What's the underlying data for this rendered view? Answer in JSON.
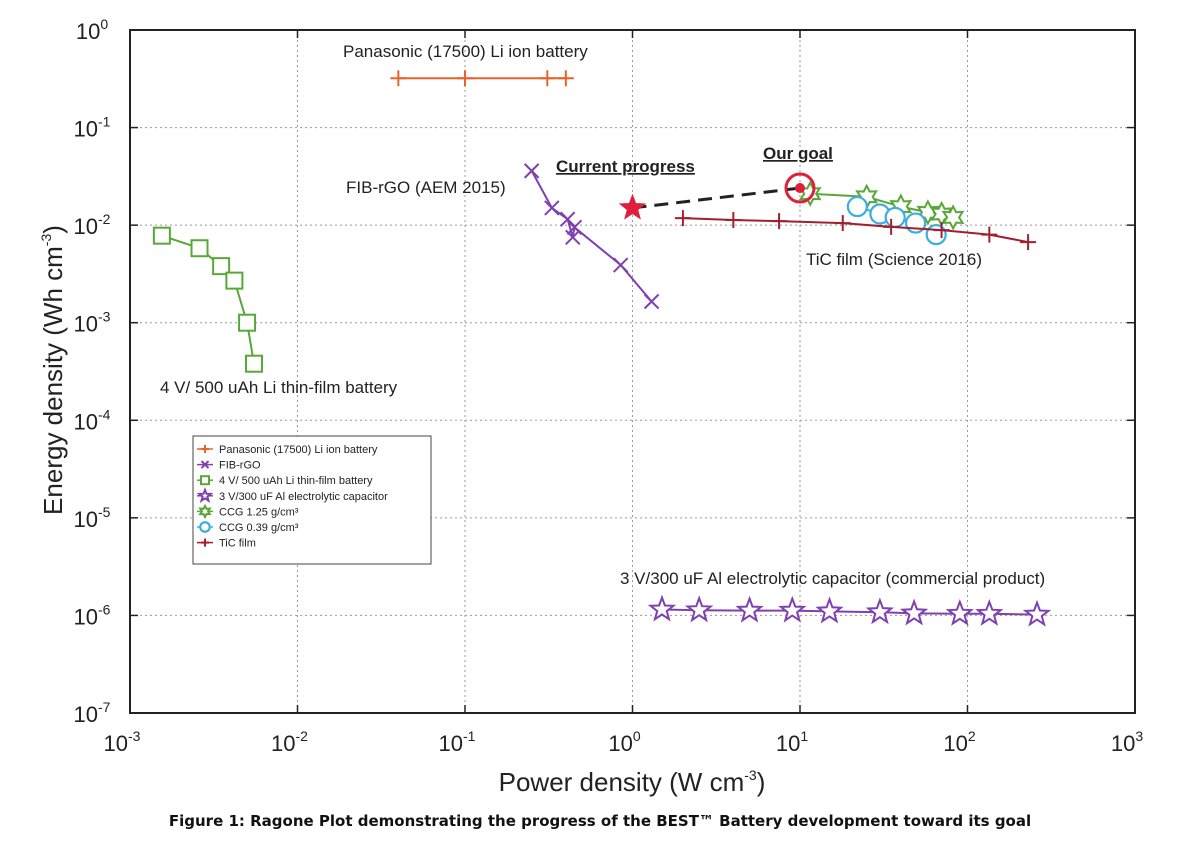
{
  "chart_data": {
    "type": "scatter",
    "scale": "log-log",
    "xlabel": "Power density (W cm",
    "xlabel_sup": "-3",
    "xlabel_tail": ")",
    "ylabel": "Energy density (Wh cm",
    "ylabel_sup": "-3",
    "ylabel_tail": ")",
    "xlim": [
      0.001,
      1000
    ],
    "ylim": [
      1e-07,
      1
    ],
    "x_tick_exponents": [
      -3,
      -2,
      -1,
      0,
      1,
      2,
      3
    ],
    "y_tick_exponents": [
      -7,
      -6,
      -5,
      -4,
      -3,
      -2,
      -1,
      0
    ],
    "grid": true,
    "series": [
      {
        "name": "Panasonic (17500) Li ion battery",
        "marker": "plus",
        "color": "#e8622c",
        "x": [
          0.04,
          0.1,
          0.31,
          0.4
        ],
        "y": [
          0.32,
          0.32,
          0.32,
          0.32
        ]
      },
      {
        "name": "FIB-rGO",
        "marker": "cross",
        "color": "#8040b0",
        "x": [
          0.25,
          0.33,
          0.41,
          0.44,
          0.45,
          0.85,
          1.3
        ],
        "y": [
          0.036,
          0.015,
          0.0115,
          0.0075,
          0.0095,
          0.0039,
          0.00165
        ]
      },
      {
        "name": "4 V/ 500 uAh Li thin-film battery",
        "marker": "square",
        "color": "#58a838",
        "x": [
          0.00155,
          0.0026,
          0.0035,
          0.0042,
          0.005,
          0.0055
        ],
        "y": [
          0.0078,
          0.0058,
          0.0038,
          0.0027,
          0.001,
          0.00038
        ]
      },
      {
        "name": "3 V/300 uF Al electrolytic capacitor",
        "marker": "star",
        "color": "#8040b0",
        "x": [
          1.5,
          2.5,
          5,
          9,
          15,
          30,
          48,
          90,
          135,
          260
        ],
        "y": [
          1.15e-06,
          1.13e-06,
          1.12e-06,
          1.12e-06,
          1.1e-06,
          1.08e-06,
          1.05e-06,
          1.04e-06,
          1.04e-06,
          1.02e-06
        ]
      },
      {
        "name": "CCG 1.25 g/cm³",
        "marker": "hexstar",
        "color": "#58a838",
        "x": [
          11.5,
          25,
          40,
          58,
          70,
          82
        ],
        "y": [
          0.021,
          0.0195,
          0.0155,
          0.0135,
          0.013,
          0.012
        ]
      },
      {
        "name": "CCG  0.39 g/cm³",
        "marker": "circle",
        "color": "#3aaee0",
        "x": [
          22,
          30,
          37,
          49,
          65
        ],
        "y": [
          0.0155,
          0.013,
          0.012,
          0.0105,
          0.008
        ]
      },
      {
        "name": "TiC film",
        "marker": "plus",
        "color": "#a02030",
        "x": [
          2,
          4,
          7.5,
          18,
          35,
          70,
          135,
          230
        ],
        "y": [
          0.0118,
          0.0113,
          0.011,
          0.0105,
          0.0096,
          0.0089,
          0.008,
          0.0067
        ]
      }
    ],
    "progress": {
      "current": {
        "x": 1.0,
        "y": 0.015,
        "color": "#e0203a"
      },
      "goal": {
        "x": 10,
        "y": 0.024,
        "color": "#e0203a"
      }
    },
    "annotations": {
      "panasonic": "Panasonic (17500) Li ion battery",
      "fib": "FIB-rGO (AEM 2015)",
      "current": "Current progress",
      "goal": "Our goal",
      "tic": "TiC film (Science 2016)",
      "thinfilm": "4 V/ 500 uAh Li thin-film battery",
      "capacitor": "3 V/300 uF Al electrolytic capacitor (commercial product)"
    },
    "legend_position": "middle-left"
  },
  "caption": "Figure 1: Ragone Plot demonstrating the progress of the BEST™ Battery development toward its goal"
}
